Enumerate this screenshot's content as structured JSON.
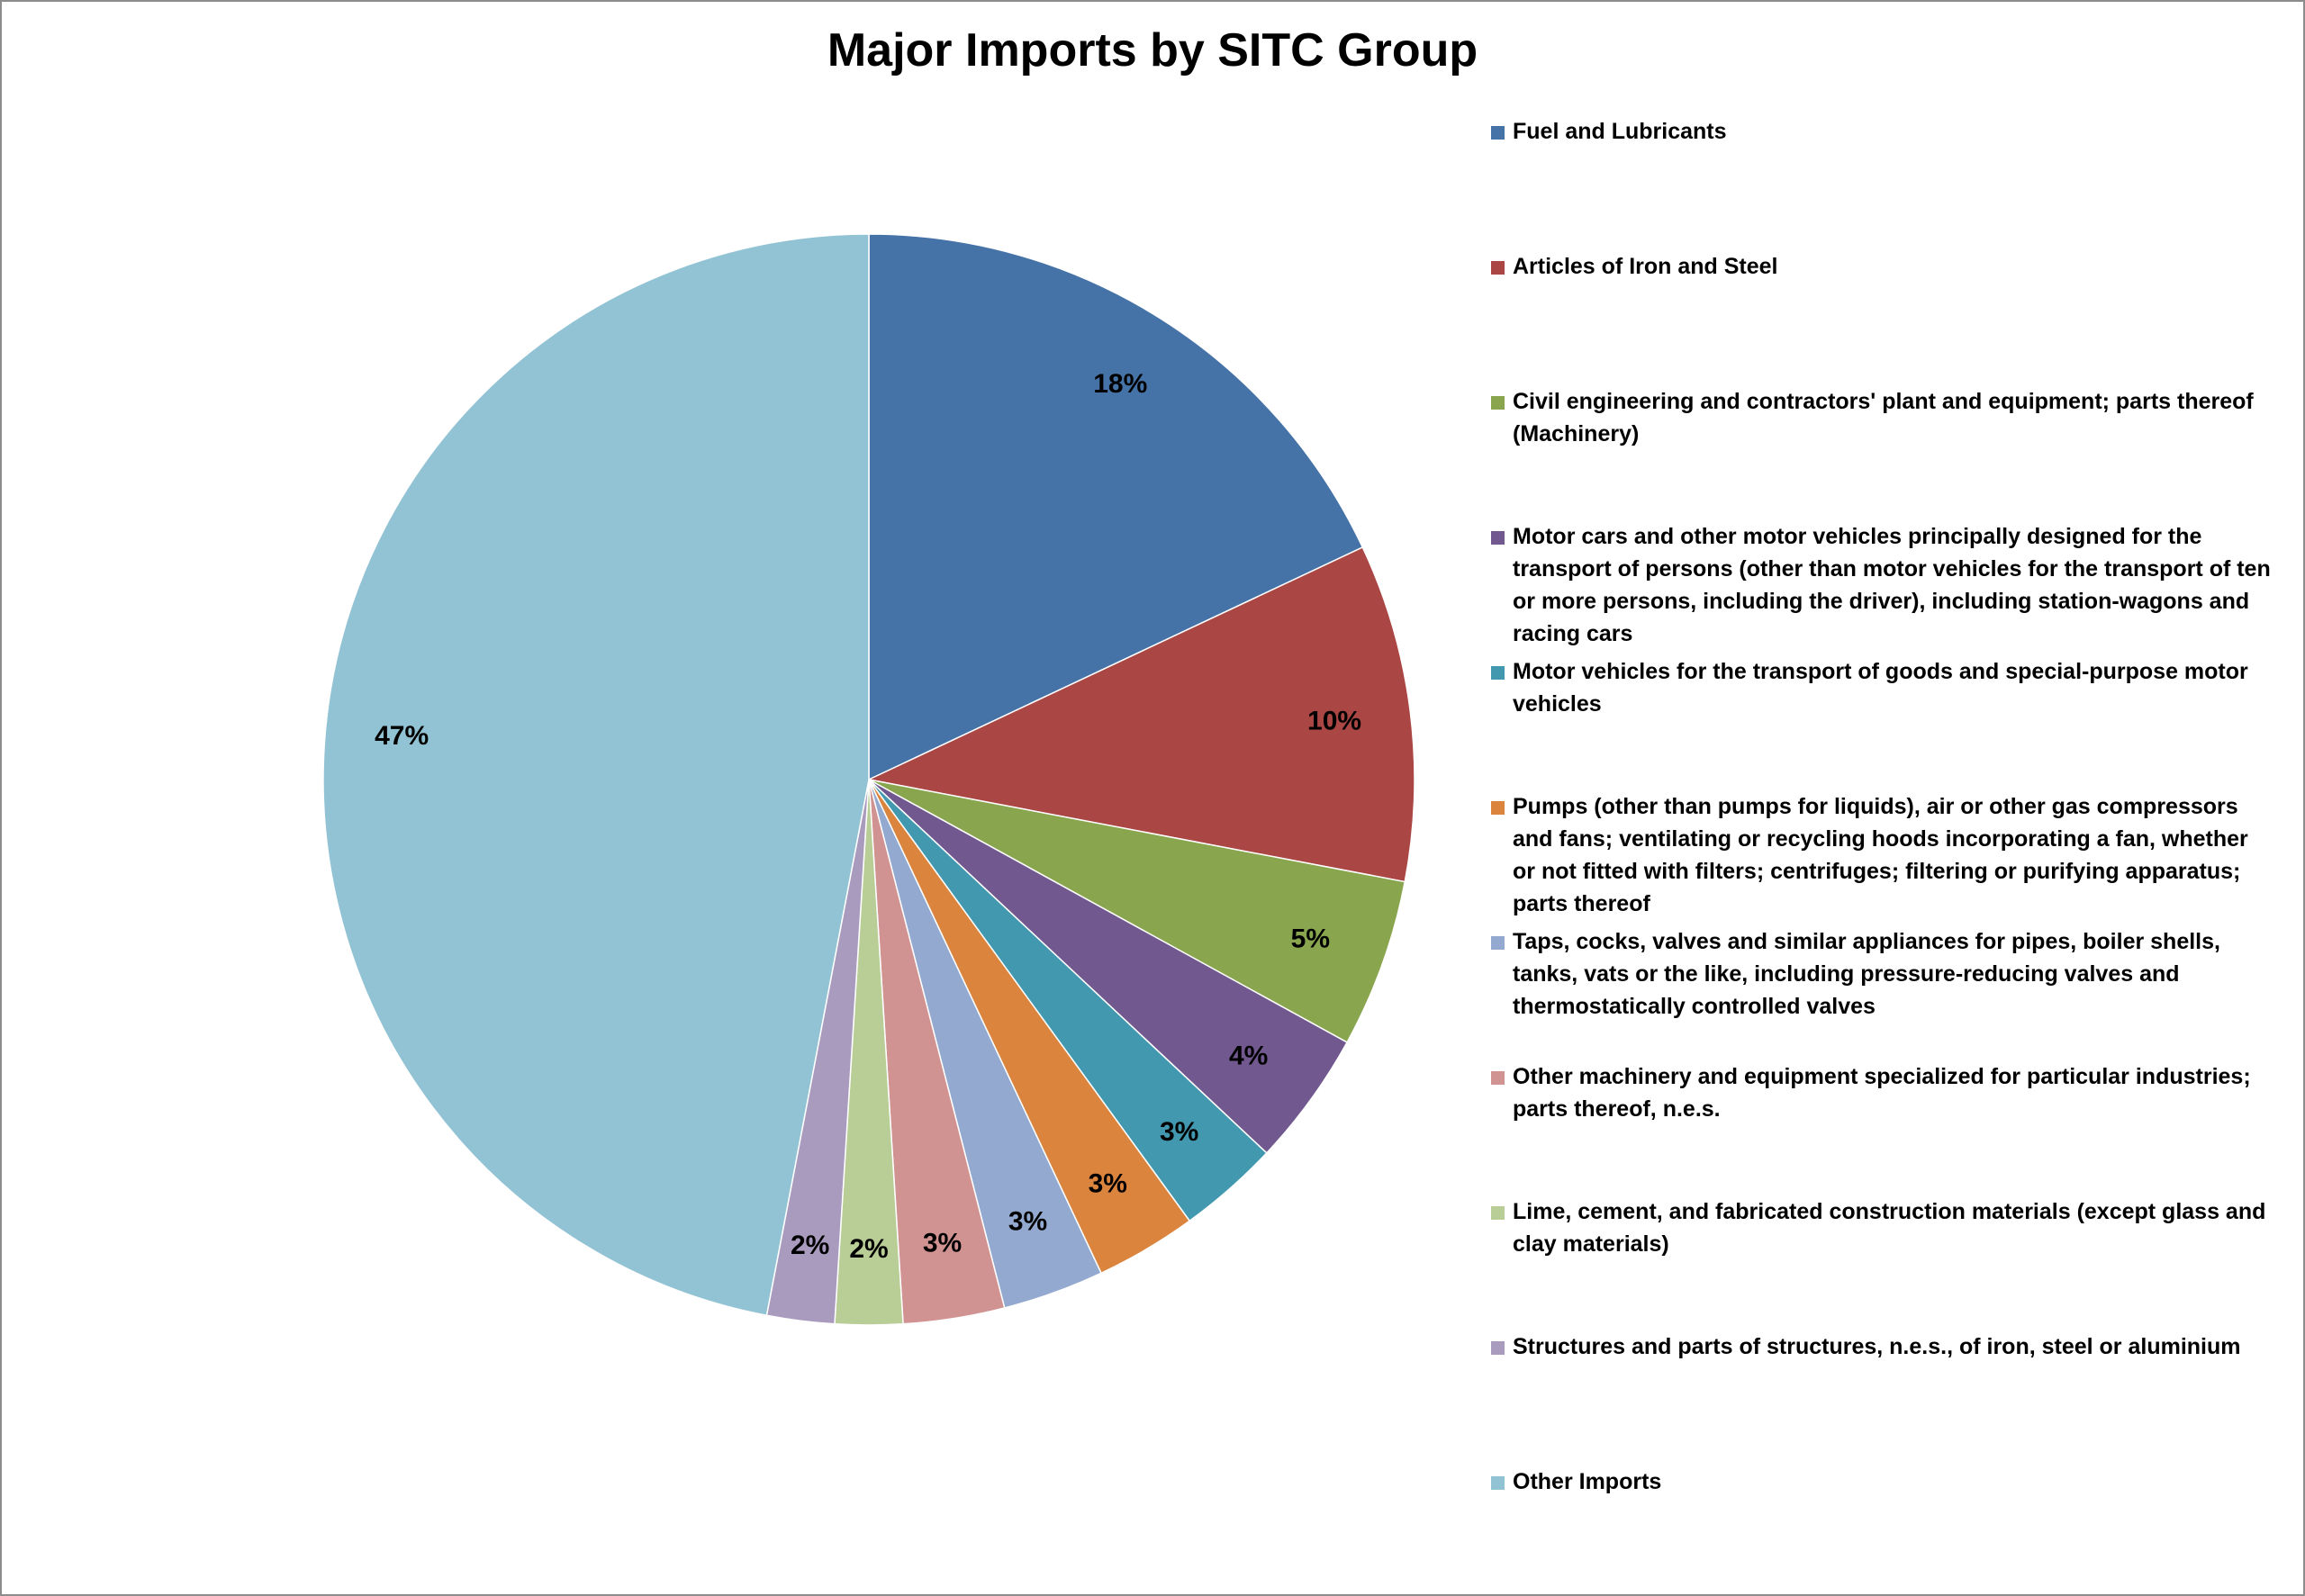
{
  "chart_data": {
    "type": "pie",
    "title": "Major Imports by SITC Group",
    "start_angle_deg": 0,
    "direction": "clockwise",
    "slices": [
      {
        "name": "Fuel and Lubricants",
        "value": 18,
        "label": "18%",
        "color": "#4572A7"
      },
      {
        "name": "Articles of Iron and Steel",
        "value": 10,
        "label": "10%",
        "color": "#AA4643"
      },
      {
        "name": "Civil engineering and contractors' plant and equipment; parts thereof (Machinery)",
        "value": 5,
        "label": "5%",
        "color": "#89A54E"
      },
      {
        "name": "Motor cars and other motor vehicles principally designed for the transport of persons (other than motor vehicles for the transport of ten or more persons, including the driver), including station-wagons and racing cars",
        "value": 4,
        "label": "4%",
        "color": "#71588F"
      },
      {
        "name": "Motor vehicles for the transport of goods and special-purpose motor vehicles",
        "value": 3,
        "label": "3%",
        "color": "#4198AF"
      },
      {
        "name": "Pumps (other than pumps for liquids), air or other gas compressors and fans; ventilating or recycling hoods incorporating a fan, whether or not fitted with filters; centrifuges; filtering or purifying apparatus; parts thereof",
        "value": 3,
        "label": "3%",
        "color": "#DB843D"
      },
      {
        "name": "Taps, cocks, valves and similar appliances for pipes, boiler shells, tanks, vats or the like, including pressure-reducing valves and thermostatically controlled valves",
        "value": 3,
        "label": "3%",
        "color": "#93A9CF"
      },
      {
        "name": "Other machinery and equipment specialized for particular industries; parts thereof, n.e.s.",
        "value": 3,
        "label": "3%",
        "color": "#D19392"
      },
      {
        "name": "Lime, cement, and fabricated construction materials (except glass and clay materials)",
        "value": 2,
        "label": "2%",
        "color": "#B9CD96"
      },
      {
        "name": "Structures and parts of structures, n.e.s., of iron, steel or aluminium",
        "value": 2,
        "label": "2%",
        "color": "#A99BBD"
      },
      {
        "name": "Other Imports",
        "value": 47,
        "label": "47%",
        "color": "#92C3D4"
      }
    ],
    "legend_position": "right"
  }
}
